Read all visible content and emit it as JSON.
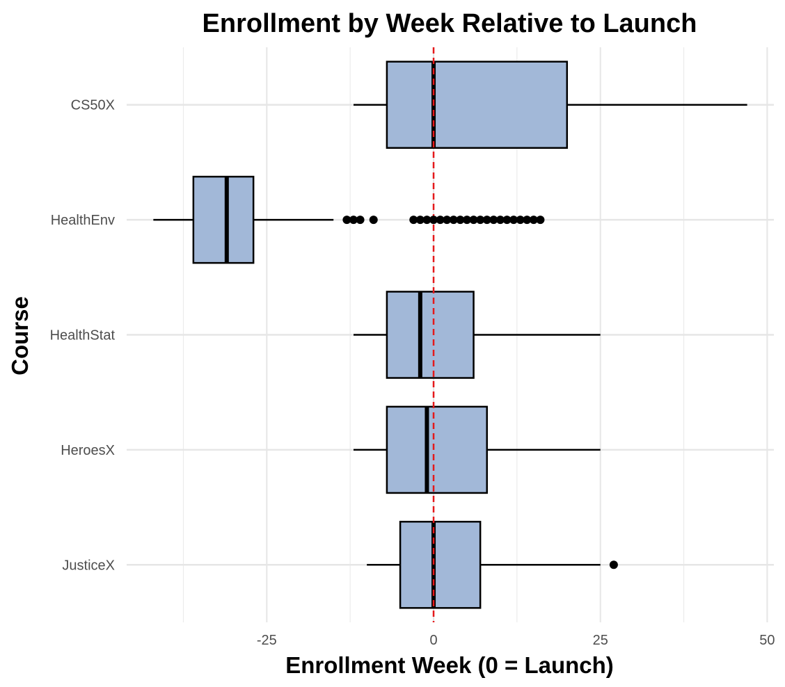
{
  "chart_data": {
    "type": "boxplot",
    "orientation": "horizontal",
    "title": "Enrollment by Week Relative to Launch",
    "xlabel": "Enrollment Week (0 = Launch)",
    "ylabel": "Course",
    "xlim": [
      -46,
      51
    ],
    "x_ticks": [
      -25,
      0,
      25,
      50
    ],
    "x_tick_labels": [
      "-25",
      "0",
      "25",
      "50"
    ],
    "grid": true,
    "legend": "none",
    "reference_line": {
      "x": 0,
      "style": "dashed",
      "color": "#e41a1c"
    },
    "box_fill": "#a2b8d8",
    "categories": [
      "CS50X",
      "HealthEnv",
      "HealthStat",
      "HeroesX",
      "JusticeX"
    ],
    "boxes": [
      {
        "category": "CS50X",
        "whisker_low": -12,
        "q1": -7,
        "median": 0,
        "q3": 20,
        "whisker_high": 47,
        "outliers": []
      },
      {
        "category": "HealthEnv",
        "whisker_low": -42,
        "q1": -36,
        "median": -31,
        "q3": -27,
        "whisker_high": -15,
        "outliers": [
          -13,
          -12,
          -11,
          -9,
          -3,
          -2,
          -1,
          0,
          1,
          2,
          3,
          4,
          5,
          6,
          7,
          8,
          9,
          10,
          11,
          12,
          13,
          14,
          15,
          16
        ]
      },
      {
        "category": "HealthStat",
        "whisker_low": -12,
        "q1": -7,
        "median": -2,
        "q3": 6,
        "whisker_high": 25,
        "outliers": []
      },
      {
        "category": "HeroesX",
        "whisker_low": -12,
        "q1": -7,
        "median": -1,
        "q3": 8,
        "whisker_high": 25,
        "outliers": []
      },
      {
        "category": "JusticeX",
        "whisker_low": -10,
        "q1": -5,
        "median": 0,
        "q3": 7,
        "whisker_high": 25,
        "outliers": [
          27
        ]
      }
    ]
  }
}
